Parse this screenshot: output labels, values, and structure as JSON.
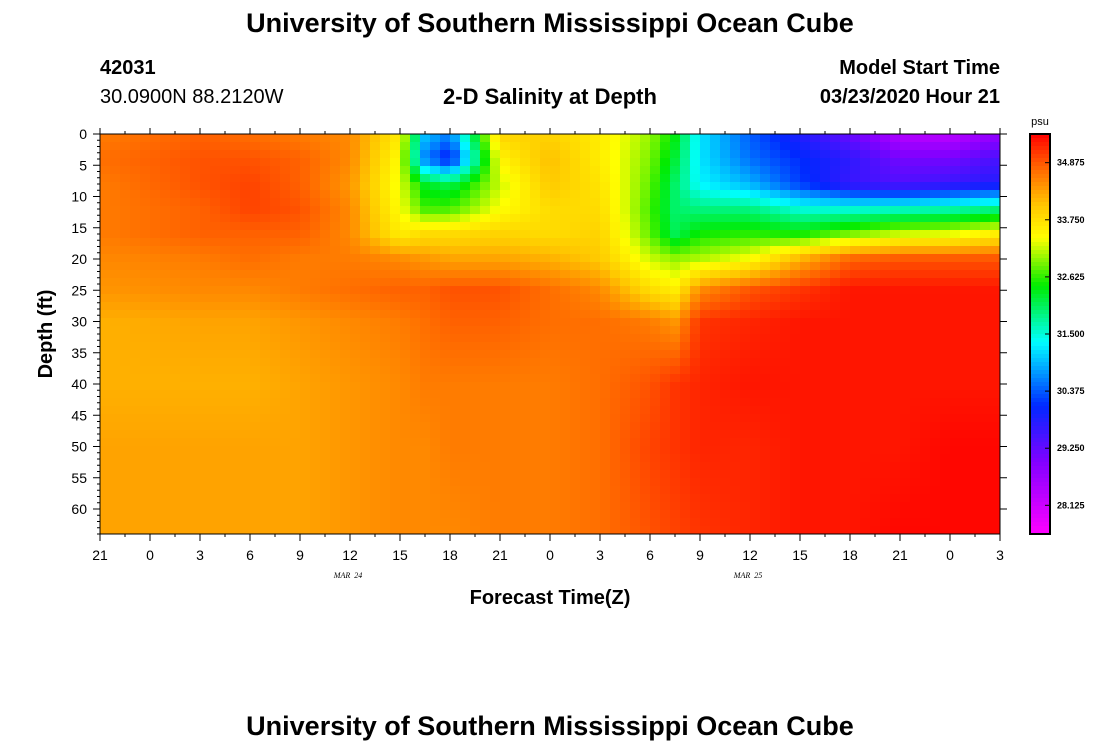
{
  "header": {
    "title_top": "University of Southern Mississippi Ocean Cube",
    "title_bottom": "University of Southern Mississippi Ocean Cube",
    "station_id": "42031",
    "station_coords": "30.0900N 88.2120W",
    "plot_title": "2-D Salinity at Depth",
    "model_start_label": "Model Start Time",
    "model_start_value": "03/23/2020 Hour 21"
  },
  "chart_data": {
    "type": "heatmap",
    "title": "2-D Salinity at Depth",
    "xlabel": "Forecast Time(Z)",
    "ylabel": "Depth (ft)",
    "x_ticks": [
      "21",
      "0",
      "3",
      "6",
      "9",
      "12",
      "15",
      "18",
      "21",
      "0",
      "3",
      "6",
      "9",
      "12",
      "15",
      "18",
      "21",
      "0",
      "3"
    ],
    "x_date_labels": [
      {
        "text": "MAR 24",
        "at_tick_index": 5
      },
      {
        "text": "MAR 25",
        "at_tick_index": 13
      }
    ],
    "y_ticks": [
      "0",
      "5",
      "10",
      "15",
      "20",
      "25",
      "30",
      "35",
      "40",
      "45",
      "50",
      "55",
      "60"
    ],
    "ylim": [
      64,
      0
    ],
    "colorbar": {
      "unit": "psu",
      "range": [
        27.56,
        35.44
      ],
      "labels": [
        "34.875",
        "33.750",
        "32.625",
        "31.500",
        "30.375",
        "29.250",
        "28.125"
      ]
    },
    "x_hours": [
      0,
      6,
      9,
      12,
      15,
      18,
      19.5,
      21,
      24,
      27,
      30,
      33,
      34.5,
      36,
      39,
      42,
      45,
      48,
      51,
      54
    ],
    "depths_ft": [
      0,
      4,
      8,
      12,
      16,
      20,
      25,
      30,
      40,
      50,
      64
    ],
    "salinity_psu": [
      [
        34.6,
        34.8,
        34.7,
        34.6,
        34.5,
        33.6,
        31.0,
        30.6,
        33.9,
        33.9,
        33.6,
        33.0,
        32.4,
        31.2,
        30.4,
        29.8,
        29.2,
        28.4,
        28.3,
        28.8
      ],
      [
        34.7,
        34.9,
        34.9,
        34.8,
        34.5,
        33.4,
        30.6,
        29.9,
        33.5,
        34.1,
        33.6,
        32.9,
        32.2,
        31.2,
        30.5,
        30.1,
        29.7,
        29.1,
        29.1,
        29.5
      ],
      [
        34.6,
        34.9,
        35.0,
        34.8,
        34.4,
        33.3,
        32.3,
        32.1,
        33.2,
        34.0,
        33.7,
        32.8,
        32.0,
        31.3,
        30.9,
        30.2,
        29.6,
        29.4,
        29.6,
        29.8
      ],
      [
        34.6,
        34.8,
        35.0,
        34.9,
        34.5,
        33.4,
        32.7,
        32.7,
        33.4,
        33.8,
        33.8,
        32.7,
        32.0,
        31.9,
        31.9,
        31.5,
        31.5,
        31.6,
        31.7,
        31.9
      ],
      [
        34.6,
        34.8,
        34.8,
        34.8,
        34.5,
        33.6,
        33.8,
        33.8,
        33.9,
        33.8,
        33.9,
        32.8,
        32.1,
        32.5,
        32.6,
        32.5,
        32.9,
        33.2,
        33.3,
        33.6
      ],
      [
        34.5,
        34.6,
        34.7,
        34.6,
        34.6,
        34.5,
        34.4,
        34.3,
        34.3,
        34.2,
        34.0,
        33.2,
        33.0,
        33.1,
        33.4,
        34.2,
        34.8,
        34.9,
        34.9,
        34.9
      ],
      [
        34.4,
        34.5,
        34.5,
        34.6,
        34.7,
        34.8,
        34.8,
        34.9,
        34.9,
        34.7,
        34.5,
        33.8,
        33.6,
        34.5,
        34.9,
        35.1,
        35.3,
        35.3,
        35.3,
        35.3
      ],
      [
        34.2,
        34.3,
        34.3,
        34.4,
        34.5,
        34.6,
        34.7,
        34.8,
        34.8,
        34.7,
        34.7,
        34.6,
        34.4,
        35.1,
        35.2,
        35.3,
        35.3,
        35.3,
        35.3,
        35.3
      ],
      [
        34.2,
        34.2,
        34.2,
        34.3,
        34.4,
        34.5,
        34.6,
        34.6,
        34.6,
        34.6,
        34.7,
        34.9,
        35.1,
        35.2,
        35.3,
        35.3,
        35.3,
        35.3,
        35.3,
        35.3
      ],
      [
        34.3,
        34.3,
        34.3,
        34.3,
        34.4,
        34.5,
        34.5,
        34.6,
        34.6,
        34.6,
        34.7,
        35.0,
        35.1,
        35.2,
        35.2,
        35.3,
        35.3,
        35.3,
        35.4,
        35.4
      ],
      [
        34.3,
        34.3,
        34.3,
        34.3,
        34.4,
        34.5,
        34.5,
        34.5,
        34.6,
        34.6,
        34.7,
        34.9,
        35.0,
        35.1,
        35.2,
        35.3,
        35.3,
        35.4,
        35.4,
        35.4
      ]
    ]
  }
}
